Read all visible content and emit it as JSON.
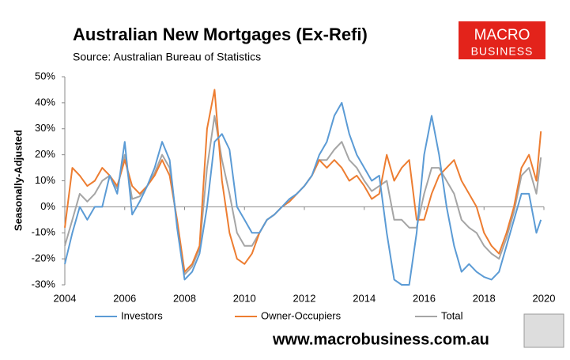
{
  "chart_data": {
    "type": "line",
    "title": "Australian New Mortgages (Ex-Refi)",
    "subtitle": "Source: Australian Bureau of Statistics",
    "ylabel": "Seasonally-Adjusted",
    "logo": [
      "MACRO",
      "BUSINESS"
    ],
    "website": "www.macrobusiness.com.au",
    "xlim": [
      2004,
      2020
    ],
    "xticks": [
      2004,
      2006,
      2008,
      2010,
      2012,
      2014,
      2016,
      2018,
      2020
    ],
    "ylim": [
      -30,
      50
    ],
    "yticks": [
      {
        "value": -30,
        "label": "-30%"
      },
      {
        "value": -20,
        "label": "-20%"
      },
      {
        "value": -10,
        "label": "-10%"
      },
      {
        "value": 0,
        "label": "0%"
      },
      {
        "value": 10,
        "label": "10%"
      },
      {
        "value": 20,
        "label": "20%"
      },
      {
        "value": 30,
        "label": "30%"
      },
      {
        "value": 40,
        "label": "40%"
      },
      {
        "value": 50,
        "label": "50%"
      }
    ],
    "grid": false,
    "legend": "bottom",
    "x": [
      2004,
      2004.25,
      2004.5,
      2004.75,
      2005,
      2005.25,
      2005.5,
      2005.75,
      2006,
      2006.25,
      2006.5,
      2006.75,
      2007,
      2007.25,
      2007.5,
      2007.75,
      2008,
      2008.25,
      2008.5,
      2008.75,
      2009,
      2009.25,
      2009.5,
      2009.75,
      2010,
      2010.25,
      2010.5,
      2010.75,
      2011,
      2011.25,
      2011.5,
      2011.75,
      2012,
      2012.25,
      2012.5,
      2012.75,
      2013,
      2013.25,
      2013.5,
      2013.75,
      2014,
      2014.25,
      2014.5,
      2014.75,
      2015,
      2015.25,
      2015.5,
      2015.75,
      2016,
      2016.25,
      2016.5,
      2016.75,
      2017,
      2017.25,
      2017.5,
      2017.75,
      2018,
      2018.25,
      2018.5,
      2018.75,
      2019,
      2019.25,
      2019.5,
      2019.75,
      2019.9
    ],
    "series": [
      {
        "name": "Investors",
        "color": "#5b9bd5",
        "values": [
          -22,
          -10,
          0,
          -5,
          0,
          0,
          12,
          5,
          25,
          -3,
          2,
          8,
          15,
          25,
          18,
          -8,
          -28,
          -25,
          -18,
          0,
          25,
          28,
          22,
          0,
          -5,
          -10,
          -10,
          -5,
          -3,
          0,
          3,
          5,
          8,
          12,
          20,
          25,
          35,
          40,
          28,
          20,
          15,
          10,
          12,
          -10,
          -28,
          -30,
          -30,
          -10,
          20,
          35,
          20,
          0,
          -15,
          -25,
          -22,
          -25,
          -27,
          -28,
          -25,
          -15,
          -5,
          5,
          5,
          -10,
          -5
        ]
      },
      {
        "name": "Owner-Occupiers",
        "color": "#ed7d31",
        "values": [
          -8,
          15,
          12,
          8,
          10,
          15,
          12,
          8,
          18,
          8,
          5,
          8,
          12,
          18,
          12,
          -5,
          -25,
          -22,
          -15,
          30,
          45,
          10,
          -10,
          -20,
          -22,
          -18,
          -10,
          -5,
          -3,
          0,
          2,
          5,
          8,
          12,
          18,
          15,
          18,
          15,
          10,
          12,
          8,
          3,
          5,
          20,
          10,
          15,
          18,
          -5,
          -5,
          5,
          12,
          15,
          18,
          10,
          5,
          0,
          -10,
          -15,
          -18,
          -10,
          0,
          15,
          20,
          10,
          29
        ]
      },
      {
        "name": "Total",
        "color": "#a5a5a5",
        "values": [
          -15,
          -5,
          5,
          2,
          5,
          10,
          12,
          7,
          20,
          3,
          4,
          8,
          13,
          20,
          15,
          -6,
          -26,
          -23,
          -16,
          15,
          35,
          18,
          5,
          -10,
          -15,
          -15,
          -10,
          -5,
          -3,
          0,
          2,
          5,
          8,
          12,
          18,
          18,
          22,
          25,
          18,
          15,
          10,
          6,
          8,
          10,
          -5,
          -5,
          -8,
          -8,
          5,
          15,
          15,
          10,
          5,
          -5,
          -8,
          -10,
          -15,
          -18,
          -20,
          -12,
          -2,
          12,
          15,
          5,
          19
        ]
      }
    ]
  }
}
